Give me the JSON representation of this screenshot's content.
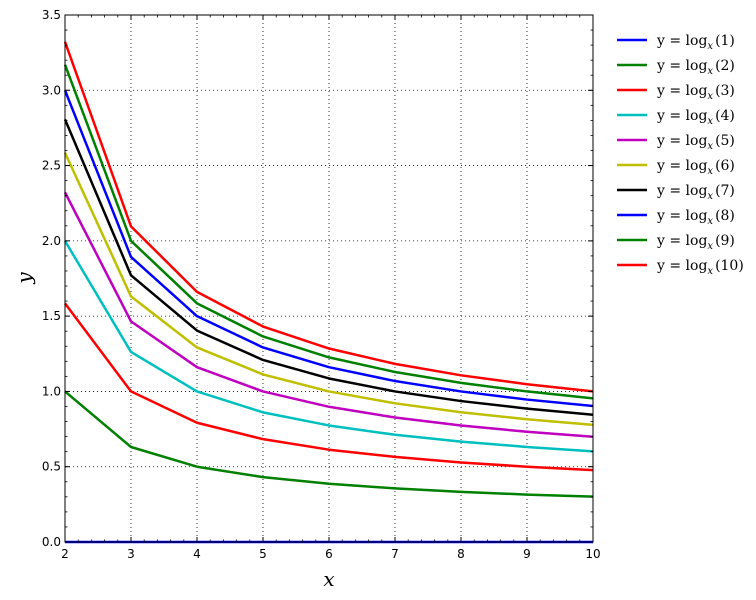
{
  "chart_data": {
    "type": "line",
    "title": "",
    "xlabel": "x",
    "ylabel": "y",
    "xlim": [
      2,
      10
    ],
    "ylim": [
      0,
      3.5
    ],
    "xticks": [
      "2",
      "3",
      "4",
      "5",
      "6",
      "7",
      "8",
      "9",
      "10"
    ],
    "yticks": [
      "0.0",
      "0.5",
      "1.0",
      "1.5",
      "2.0",
      "2.5",
      "3.0",
      "3.5"
    ],
    "grid": true,
    "legend_position": "outside-right",
    "x": [
      2,
      3,
      4,
      5,
      6,
      7,
      8,
      9,
      10
    ],
    "series": [
      {
        "name_prefix": "y = log",
        "name_sub": "x",
        "name_arg": "(1)",
        "color": "#0000ff",
        "values": [
          0,
          0,
          0,
          0,
          0,
          0,
          0,
          0,
          0
        ]
      },
      {
        "name_prefix": "y = log",
        "name_sub": "x",
        "name_arg": "(2)",
        "color": "#008000",
        "values": [
          1.0,
          0.631,
          0.5,
          0.431,
          0.387,
          0.356,
          0.333,
          0.315,
          0.301
        ]
      },
      {
        "name_prefix": "y = log",
        "name_sub": "x",
        "name_arg": "(3)",
        "color": "#ff0000",
        "values": [
          1.585,
          1.0,
          0.792,
          0.683,
          0.613,
          0.565,
          0.528,
          0.5,
          0.477
        ]
      },
      {
        "name_prefix": "y = log",
        "name_sub": "x",
        "name_arg": "(4)",
        "color": "#00bfbf",
        "values": [
          2.0,
          1.262,
          1.0,
          0.861,
          0.774,
          0.712,
          0.667,
          0.631,
          0.602
        ]
      },
      {
        "name_prefix": "y = log",
        "name_sub": "x",
        "name_arg": "(5)",
        "color": "#bf00bf",
        "values": [
          2.322,
          1.465,
          1.161,
          1.0,
          0.898,
          0.827,
          0.774,
          0.732,
          0.699
        ]
      },
      {
        "name_prefix": "y = log",
        "name_sub": "x",
        "name_arg": "(6)",
        "color": "#bfbf00",
        "values": [
          2.585,
          1.631,
          1.292,
          1.113,
          1.0,
          0.921,
          0.862,
          0.815,
          0.778
        ]
      },
      {
        "name_prefix": "y = log",
        "name_sub": "x",
        "name_arg": "(7)",
        "color": "#000000",
        "values": [
          2.807,
          1.771,
          1.404,
          1.209,
          1.086,
          1.0,
          0.936,
          0.886,
          0.845
        ]
      },
      {
        "name_prefix": "y = log",
        "name_sub": "x",
        "name_arg": "(8)",
        "color": "#0000ff",
        "values": [
          3.0,
          1.893,
          1.5,
          1.292,
          1.161,
          1.069,
          1.0,
          0.946,
          0.903
        ]
      },
      {
        "name_prefix": "y = log",
        "name_sub": "x",
        "name_arg": "(9)",
        "color": "#008000",
        "values": [
          3.17,
          2.0,
          1.585,
          1.365,
          1.226,
          1.129,
          1.057,
          1.0,
          0.954
        ]
      },
      {
        "name_prefix": "y = log",
        "name_sub": "x",
        "name_arg": "(10)",
        "color": "#ff0000",
        "values": [
          3.322,
          2.096,
          1.661,
          1.431,
          1.285,
          1.183,
          1.107,
          1.048,
          1.0
        ]
      }
    ]
  }
}
